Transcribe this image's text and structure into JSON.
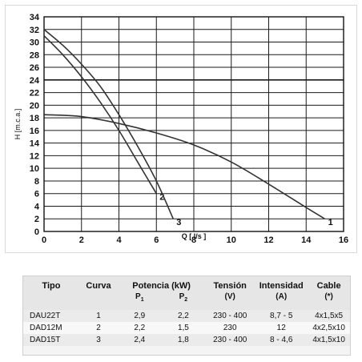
{
  "chart_data": {
    "type": "line",
    "ylabel": "H [m.c.a.]",
    "xlabel": "Q [ l/s ]",
    "xlim": [
      0,
      16
    ],
    "ylim": [
      0,
      34
    ],
    "x_ticks": [
      0,
      2,
      4,
      6,
      8,
      10,
      12,
      14,
      16
    ],
    "y_ticks": [
      0,
      2,
      4,
      6,
      8,
      10,
      12,
      14,
      16,
      18,
      20,
      22,
      24,
      26,
      28,
      30,
      32,
      34
    ],
    "grid": true,
    "series": [
      {
        "name": "1",
        "points": [
          [
            0,
            18.5
          ],
          [
            2,
            18.2
          ],
          [
            4,
            17.1
          ],
          [
            6,
            15.6
          ],
          [
            8,
            13.7
          ],
          [
            10,
            11.0
          ],
          [
            12,
            7.5
          ],
          [
            14,
            3.8
          ],
          [
            15,
            2.0
          ]
        ]
      },
      {
        "name": "2",
        "points": [
          [
            0,
            31.0
          ],
          [
            1,
            28.0
          ],
          [
            2,
            24.5
          ],
          [
            3,
            20.5
          ],
          [
            4,
            16.0
          ],
          [
            5,
            11.0
          ],
          [
            6,
            6.0
          ]
        ]
      },
      {
        "name": "3",
        "points": [
          [
            0,
            32.0
          ],
          [
            1,
            29.5
          ],
          [
            2,
            26.5
          ],
          [
            3,
            23.0
          ],
          [
            4,
            18.5
          ],
          [
            5,
            13.5
          ],
          [
            6,
            8.0
          ],
          [
            6.9,
            2.0
          ]
        ]
      }
    ],
    "line_color": "#333333"
  },
  "table": {
    "headers": [
      "Tipo",
      "Curva",
      "Potencia (kW)",
      "Tensión",
      "Intensidad",
      "Cable"
    ],
    "subheaders": {
      "potencia_p1": "P",
      "potencia_p1_sub": "1",
      "potencia_p2": "P",
      "potencia_p2_sub": "2",
      "tension": "(V)",
      "intensidad": "(A)",
      "cable": "(*)"
    },
    "rows": [
      [
        "DAU22T",
        "1",
        "2,9",
        "2,2",
        "230 - 400",
        "8,7 - 5",
        "4x1,5x5"
      ],
      [
        "DAD12M",
        "2",
        "2,2",
        "1,5",
        "230",
        "12",
        "4x2,5x10"
      ],
      [
        "DAD15T",
        "3",
        "2,4",
        "1,8",
        "230 - 400",
        "8 - 4,6",
        "4x1,5x10"
      ]
    ]
  }
}
